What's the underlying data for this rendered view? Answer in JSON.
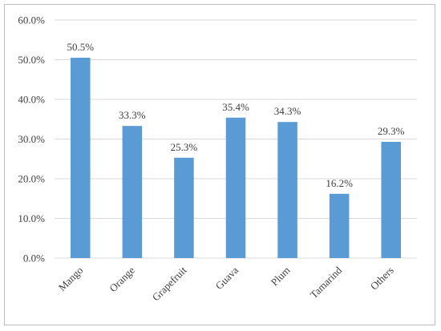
{
  "chart_data": {
    "type": "bar",
    "categories": [
      "Mango",
      "Orange",
      "Grapefruit",
      "Guava",
      "Plum",
      "Tamarind",
      "Others"
    ],
    "values": [
      50.5,
      33.3,
      25.3,
      35.4,
      34.3,
      16.2,
      29.3
    ],
    "value_labels": [
      "50.5%",
      "33.3%",
      "25.3%",
      "35.4%",
      "34.3%",
      "16.2%",
      "29.3%"
    ],
    "y_ticks": [
      0,
      10,
      20,
      30,
      40,
      50,
      60
    ],
    "y_tick_labels": [
      "0.0%",
      "10.0%",
      "20.0%",
      "30.0%",
      "40.0%",
      "50.0%",
      "60.0%"
    ],
    "ylim": [
      0,
      60
    ],
    "grid": true,
    "bar_color": "#5b9bd5"
  }
}
